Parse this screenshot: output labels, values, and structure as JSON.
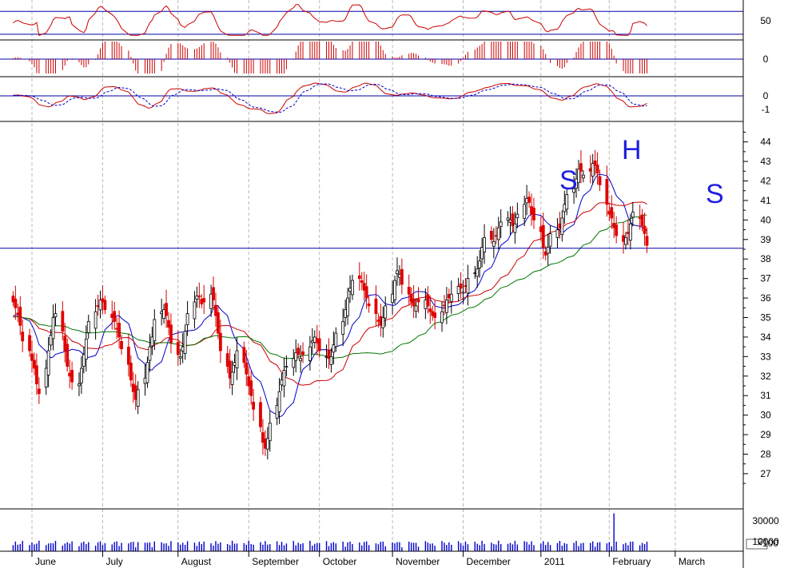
{
  "chart_data": {
    "type": "candlestick",
    "panels": {
      "rsi": {
        "ticks": [
          50
        ],
        "reference_lines": [
          70,
          30
        ]
      },
      "histogram": {
        "ticks": [
          0
        ]
      },
      "macd": {
        "ticks": [
          0,
          -1
        ]
      },
      "price": {
        "ticks": [
          44,
          43,
          42,
          41,
          40,
          39,
          38,
          37,
          36,
          35,
          34,
          33,
          32,
          31,
          30,
          29,
          28,
          27
        ],
        "ylim": [
          26.3,
          44.6
        ],
        "support_line": 38.55
      },
      "volume": {
        "ticks": [
          "30000",
          "10000"
        ],
        "unit_label": "×100",
        "ylim": [
          0,
          38000
        ]
      }
    },
    "months": [
      "June",
      "July",
      "August",
      "September",
      "October",
      "November",
      "December",
      "2011",
      "February",
      "March"
    ],
    "pattern_labels": [
      {
        "text": "S",
        "date": "2011-01-05"
      },
      {
        "text": "H",
        "date": "2011-02-08"
      },
      {
        "text": "S",
        "date": "2011-03-10"
      }
    ],
    "series": [
      {
        "name": "",
        "color": "#0000cc"
      },
      {
        "name": "",
        "color": "#cc0000"
      },
      {
        "name": "",
        "color": "#007700"
      }
    ],
    "closes": [
      35.8,
      35.5,
      35.2,
      34.6,
      33.8,
      33.3,
      32.8,
      32.4,
      31.6,
      31.1,
      32.4,
      33.3,
      34.1,
      35.0,
      35.2,
      34.3,
      33.3,
      32.5,
      32.0,
      31.7,
      31.6,
      32.4,
      33.1,
      33.9,
      34.8,
      35.3,
      35.6,
      35.9,
      35.8,
      35.4,
      35.0,
      34.8,
      34.4,
      34.0,
      33.4,
      32.6,
      31.8,
      31.2,
      30.8,
      31.3,
      31.9,
      32.7,
      33.5,
      34.0,
      34.9,
      35.3,
      35.4,
      35.1,
      34.5,
      33.7,
      33.1,
      33.0,
      33.5,
      34.3,
      35.2,
      35.8,
      36.1,
      36.1,
      35.7,
      35.8,
      36.2,
      35.9,
      35.1,
      34.2,
      33.3,
      32.5,
      31.9,
      32.2,
      32.7,
      33.3,
      32.7,
      32.1,
      31.5,
      31.0,
      30.3,
      29.4,
      28.6,
      28.3,
      28.8,
      29.6,
      30.5,
      31.2,
      31.8,
      32.3,
      32.5,
      32.9,
      33.2,
      33.1,
      32.9,
      33.1,
      33.5,
      33.8,
      34.0,
      33.7,
      33.3,
      33.0,
      32.9,
      33.0,
      33.6,
      34.2,
      34.8,
      35.4,
      36.0,
      36.5,
      36.9,
      37.0,
      36.8,
      36.4,
      36.0,
      35.6,
      35.2,
      34.8,
      34.6,
      35.0,
      35.6,
      36.2,
      36.9,
      37.4,
      37.2,
      36.7,
      36.2,
      35.8,
      35.6,
      35.6,
      35.8,
      35.9,
      35.6,
      35.3,
      35.1,
      35.0,
      35.3,
      35.6,
      35.9,
      36.0,
      36.2,
      36.6,
      36.5,
      36.3,
      36.6,
      37.0,
      37.3,
      37.5,
      37.9,
      38.6,
      39.1,
      39.0,
      38.9,
      39.2,
      39.6,
      39.9,
      40.1,
      40.0,
      39.7,
      39.8,
      40.3,
      40.8,
      41.1,
      40.9,
      40.3,
      40.0,
      39.4,
      38.6,
      38.2,
      38.6,
      39.3,
      39.5,
      39.6,
      40.1,
      40.8,
      41.3,
      41.6,
      42.1,
      42.6,
      42.5,
      42.3,
      42.5,
      42.9,
      42.8,
      42.4,
      41.8,
      40.8,
      40.3,
      40.1,
      39.6,
      39.2,
      38.9,
      39.1,
      39.3,
      39.8,
      40.4,
      40.1,
      39.7,
      39.3,
      38.7
    ]
  }
}
